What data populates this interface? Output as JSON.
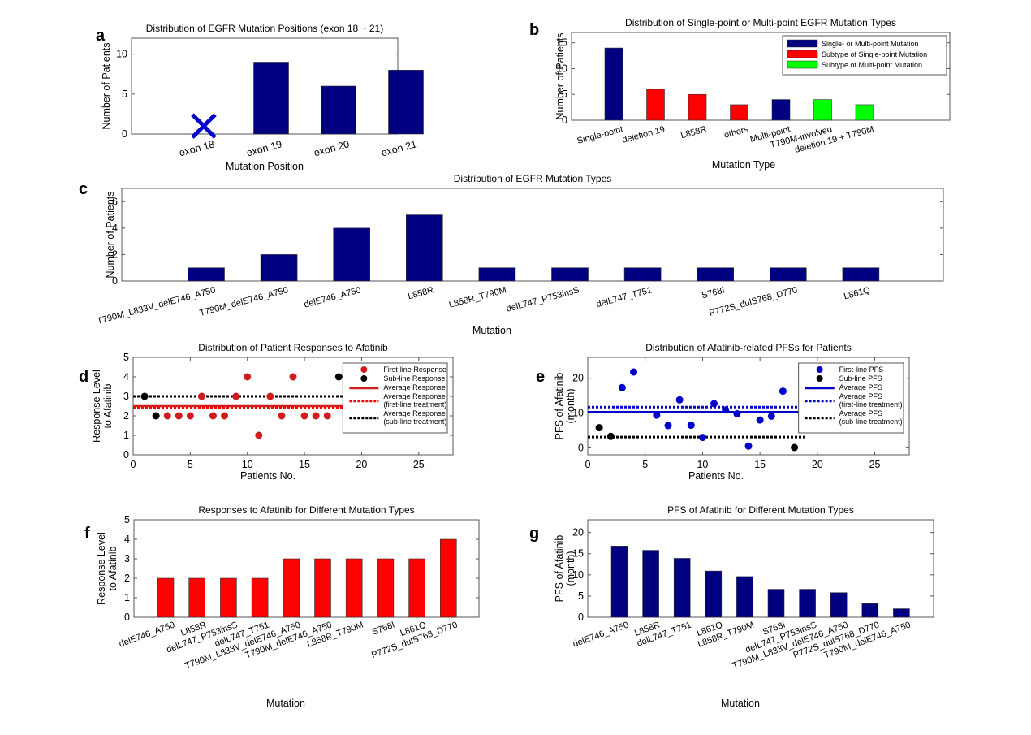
{
  "colors": {
    "navy": "#000080",
    "red": "#ff0000",
    "darkred": "#d01c1c",
    "green": "#00ff00",
    "blue": "#0000cc",
    "black": "#000000",
    "axis": "#555555"
  },
  "chart_data": [
    {
      "id": "a",
      "panel_label": "a",
      "type": "bar",
      "title": "Distribution of EGFR Mutation Positions (exon 18 ~ 21)",
      "xlabel": "Mutation Position",
      "ylabel": "Number of Patients",
      "categories": [
        "exon 18",
        "exon 19",
        "exon 20",
        "exon 21"
      ],
      "values": [
        0,
        9,
        6,
        8
      ],
      "markers": [
        {
          "category": "exon 18",
          "symbol": "x",
          "value": 1
        }
      ],
      "ylim": [
        0,
        12
      ],
      "yticks": [
        0,
        5,
        10
      ],
      "bar_color": "navy"
    },
    {
      "id": "b",
      "panel_label": "b",
      "type": "bar",
      "title": "Distribution of Single-point or Multi-point EGFR Mutation Types",
      "xlabel": "Mutation Type",
      "ylabel": "Number of Patients",
      "categories": [
        "Single-point",
        "deletion 19",
        "L858R",
        "others",
        "Multi-point",
        "T790M-involved",
        "deletion 19 + T790M"
      ],
      "values": [
        14,
        6,
        5,
        3,
        4,
        4,
        3
      ],
      "groups": [
        "single_or_multi",
        "single_subtype",
        "single_subtype",
        "single_subtype",
        "single_or_multi",
        "multi_subtype",
        "multi_subtype"
      ],
      "legend": [
        {
          "key": "single_or_multi",
          "label": "Single- or Multi-point Mutation",
          "color": "navy"
        },
        {
          "key": "single_subtype",
          "label": "Subtype of Single-point Mutation",
          "color": "red"
        },
        {
          "key": "multi_subtype",
          "label": "Subtype of Multi-point Mutation",
          "color": "green"
        }
      ],
      "legend_position": "top-right",
      "ylim": [
        0,
        17
      ],
      "yticks": [
        0,
        5,
        10,
        15
      ]
    },
    {
      "id": "c",
      "panel_label": "c",
      "type": "bar",
      "title": "Distribution of EGFR Mutation Types",
      "xlabel": "Mutation",
      "ylabel": "Number of Patients",
      "categories": [
        "T790M_L833V_delE746_A750",
        "T790M_delE746_A750",
        "delE746_A750",
        "L858R",
        "L858R_T790M",
        "delL747_P753insS",
        "delL747_T751",
        "S768I",
        "P772S_dulS768_D770",
        "L861Q"
      ],
      "values": [
        1,
        2,
        4,
        5,
        1,
        1,
        1,
        1,
        1,
        1
      ],
      "ylim": [
        0,
        7
      ],
      "yticks": [
        0,
        2,
        4,
        6
      ],
      "bar_color": "navy"
    },
    {
      "id": "d",
      "panel_label": "d",
      "type": "scatter",
      "title": "Distribution of Patient Responses to Afatinib",
      "xlabel": "Patients No.",
      "ylabel": [
        "Response Level",
        "to Afatinib"
      ],
      "xlim": [
        0,
        28
      ],
      "ylim": [
        0,
        5
      ],
      "xticks": [
        0,
        5,
        10,
        15,
        20,
        25
      ],
      "yticks": [
        0,
        1,
        2,
        3,
        4,
        5
      ],
      "series": [
        {
          "name": "First-line Response",
          "kind": "points",
          "color": "darkred",
          "x": [
            3,
            4,
            5,
            6,
            7,
            8,
            9,
            10,
            11,
            12,
            13,
            14,
            15,
            16,
            17
          ],
          "y": [
            2,
            2,
            2,
            3,
            2,
            2,
            3,
            4,
            1,
            3,
            2,
            4,
            2,
            2,
            2
          ]
        },
        {
          "name": "Sub-line Response",
          "kind": "points",
          "color": "black",
          "x": [
            1,
            2,
            18
          ],
          "y": [
            3,
            2,
            4
          ]
        },
        {
          "name": "Average Response",
          "kind": "hline",
          "style": "solid",
          "color": "darkred",
          "y": 2.5,
          "x_range": [
            0,
            19
          ]
        },
        {
          "name": "Average Response\n(first-line treatment)",
          "kind": "hline",
          "style": "dotted",
          "color": "red",
          "y": 2.4,
          "x_range": [
            0,
            19
          ]
        },
        {
          "name": "Average Response\n(sub-line treatment)",
          "kind": "hline",
          "style": "dotted",
          "color": "black",
          "y": 3.0,
          "x_range": [
            0,
            19
          ]
        }
      ],
      "legend_position": "top-right"
    },
    {
      "id": "e",
      "panel_label": "e",
      "type": "scatter",
      "title": "Distribution of Afatinib-related PFSs for Patients",
      "xlabel": "Patients No.",
      "ylabel": [
        "PFS of Afatinib",
        "(month)"
      ],
      "xlim": [
        0,
        28
      ],
      "ylim": [
        -2,
        26
      ],
      "xticks": [
        0,
        5,
        10,
        15,
        20,
        25
      ],
      "yticks": [
        0,
        10,
        20
      ],
      "series": [
        {
          "name": "First-line PFS",
          "kind": "points",
          "color": "blue",
          "x": [
            3,
            4,
            6,
            7,
            8,
            9,
            10,
            11,
            12,
            13,
            14,
            15,
            16,
            17
          ],
          "y": [
            17.3,
            21.8,
            9.4,
            6.4,
            13.8,
            6.5,
            3.0,
            12.7,
            10.9,
            9.8,
            0.5,
            8.0,
            9.1,
            16.3
          ]
        },
        {
          "name": "Sub-line PFS",
          "kind": "points",
          "color": "black",
          "x": [
            1,
            2,
            18
          ],
          "y": [
            5.8,
            3.3,
            0.1
          ]
        },
        {
          "name": "Average PFS",
          "kind": "hline",
          "style": "solid",
          "color": "blue",
          "y": 10.3,
          "x_range": [
            0,
            19
          ]
        },
        {
          "name": "Average PFS\n(first-line treatment)",
          "kind": "hline",
          "style": "dotted",
          "color": "blue",
          "y": 11.7,
          "x_range": [
            0,
            19
          ]
        },
        {
          "name": "Average PFS\n(sub-line treatment)",
          "kind": "hline",
          "style": "dotted",
          "color": "black",
          "y": 3.1,
          "x_range": [
            0,
            19
          ]
        }
      ],
      "legend_position": "top-right"
    },
    {
      "id": "f",
      "panel_label": "f",
      "type": "bar",
      "title": "Responses to Afatinib for Different Mutation Types",
      "xlabel": "Mutation",
      "ylabel": [
        "Response Level",
        "to Afatinib"
      ],
      "categories": [
        "delE746_A750",
        "L858R",
        "delL747_P753insS",
        "delL747_T751",
        "T790M_L833V_delE746_A750",
        "T790M_delE746_A750",
        "L858R_T790M",
        "S768I",
        "L861Q",
        "P772S_dulS768_D770"
      ],
      "values": [
        2,
        2,
        2,
        2,
        3,
        3,
        3,
        3,
        3,
        4
      ],
      "ylim": [
        0,
        5
      ],
      "yticks": [
        0,
        1,
        2,
        3,
        4,
        5
      ],
      "bar_color": "red"
    },
    {
      "id": "g",
      "panel_label": "g",
      "type": "bar",
      "title": "PFS of Afatinib for Different Mutation Types",
      "xlabel": "Mutation",
      "ylabel": [
        "PFS of Afatinib",
        "(month)"
      ],
      "categories": [
        "delE746_A750",
        "L858R",
        "delL747_T751",
        "L861Q",
        "L858R_T790M",
        "S768I",
        "delL747_P753insS",
        "T790M_L833V_delE746_A750",
        "P772S_dulS768_D770",
        "T790M_delE746_A750"
      ],
      "values": [
        16.8,
        15.8,
        13.9,
        10.9,
        9.6,
        6.6,
        6.6,
        5.8,
        3.2,
        2.0
      ],
      "ylim": [
        0,
        23
      ],
      "yticks": [
        0,
        5,
        10,
        15,
        20
      ],
      "bar_color": "navy"
    }
  ]
}
